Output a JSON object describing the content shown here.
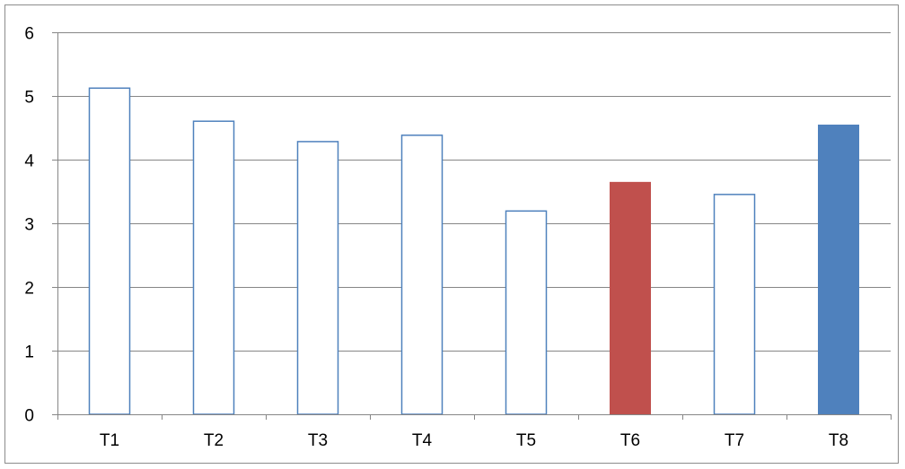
{
  "chart_data": {
    "type": "bar",
    "categories": [
      "T1",
      "T2",
      "T3",
      "T4",
      "T5",
      "T6",
      "T7",
      "T8"
    ],
    "values": [
      5.13,
      4.61,
      4.29,
      4.39,
      3.2,
      3.65,
      3.46,
      4.55
    ],
    "bar_styles": [
      "outline",
      "outline",
      "outline",
      "outline",
      "outline",
      "filled",
      "outline",
      "filled"
    ],
    "bar_colors": [
      "#4f81bd",
      "#4f81bd",
      "#4f81bd",
      "#4f81bd",
      "#4f81bd",
      "#c0504d",
      "#4f81bd",
      "#4f81bd"
    ],
    "title": "",
    "xlabel": "",
    "ylabel": "",
    "ylim": [
      0,
      6
    ],
    "y_ticks": [
      "0",
      "1",
      "2",
      "3",
      "4",
      "5",
      "6"
    ],
    "grid": true,
    "legend": "none"
  },
  "colors": {
    "gridline": "#868686",
    "axis": "#868686",
    "outline_bar": "#4f81bd"
  }
}
